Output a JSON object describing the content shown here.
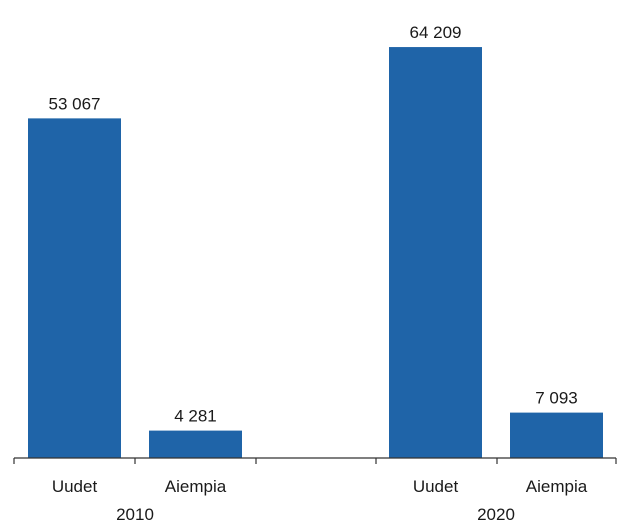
{
  "chart_data": {
    "type": "bar",
    "groups": [
      {
        "label": "2010",
        "bars": [
          {
            "category": "Uudet",
            "value": 53067,
            "value_label": "53 067"
          },
          {
            "category": "Aiempia",
            "value": 4281,
            "value_label": "4 281"
          }
        ]
      },
      {
        "label": "2020",
        "bars": [
          {
            "category": "Uudet",
            "value": 64209,
            "value_label": "64 209"
          },
          {
            "category": "Aiempia",
            "value": 7093,
            "value_label": "7 093"
          }
        ]
      }
    ],
    "bar_color": "#1f64a8",
    "ylim": [
      0,
      70000
    ],
    "grid": false,
    "legend": "none"
  }
}
